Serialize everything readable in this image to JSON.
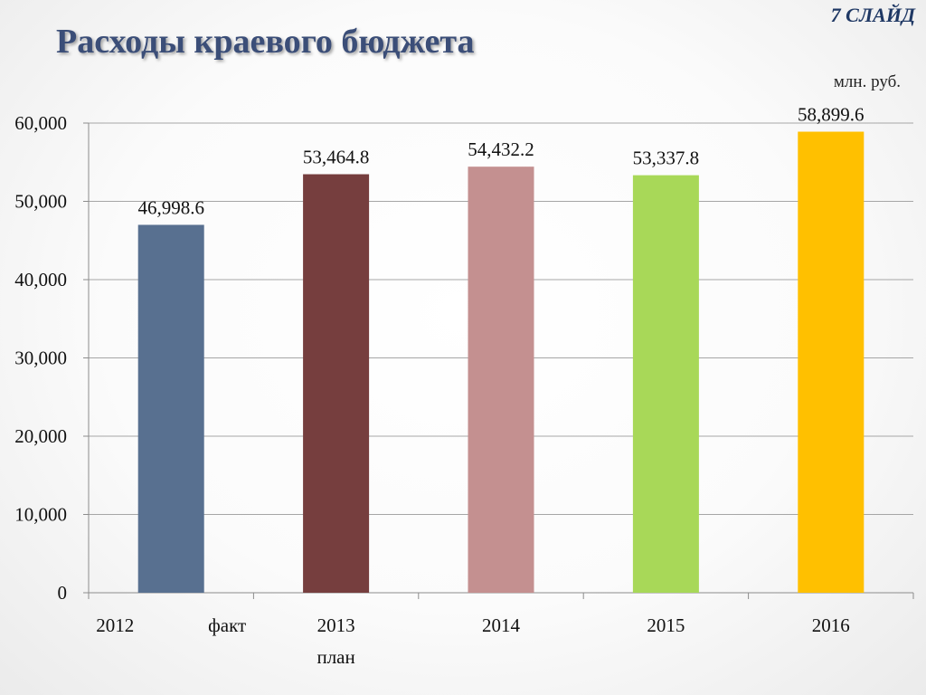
{
  "slide": {
    "number": "7 СЛАЙД",
    "title": "Расходы краевого бюджета"
  },
  "chart_data": {
    "type": "bar",
    "unit": "млн. руб.",
    "categories": [
      "2012 факт",
      "2013 план",
      "2014",
      "2015",
      "2016"
    ],
    "category_lines": [
      [
        "2012",
        "факт"
      ],
      [
        "2013",
        "план"
      ],
      [
        "2014"
      ],
      [
        "2015"
      ],
      [
        "2016"
      ]
    ],
    "values": [
      46998.6,
      53464.8,
      54432.2,
      53337.8,
      58899.6
    ],
    "value_labels": [
      "46,998.6",
      "53,464.8",
      "54,432.2",
      "53,337.8",
      "58,899.6"
    ],
    "bar_colors": [
      "#587090",
      "#763e3e",
      "#c49090",
      "#a8d858",
      "#ffc000"
    ],
    "ylim": [
      0,
      60000
    ],
    "yticks": [
      0,
      10000,
      20000,
      30000,
      40000,
      50000,
      60000
    ],
    "ytick_labels": [
      "0",
      "10,000",
      "20,000",
      "30,000",
      "40,000",
      "50,000",
      "60,000"
    ],
    "grid": true,
    "legend": "none"
  }
}
